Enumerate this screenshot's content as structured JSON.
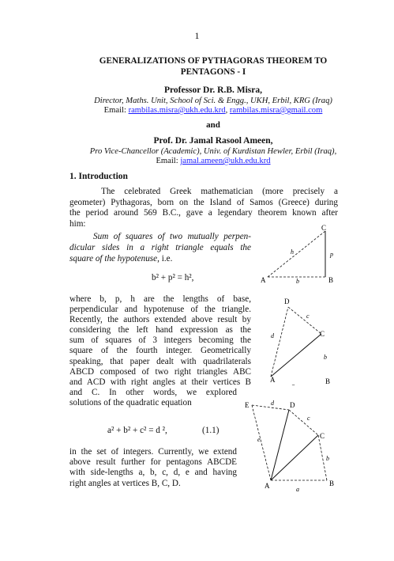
{
  "page_number": "1",
  "title_line1": "GENERALIZATIONS OF PYTHAGORAS THEOREM TO",
  "title_line2": "PENTAGONS - I",
  "author1": {
    "name": "Professor Dr. R.B. Misra,",
    "affiliation": "Director, Maths. Unit, School of Sci. & Engg., UKH, Erbil, KRG (Iraq)",
    "email_label": "Email:",
    "email1": "rambilas.misra@ukh.edu.krd",
    "email_sep": ",",
    "email2": "rambilas.misra@gmail.com"
  },
  "and_word": "and",
  "author2": {
    "name": "Prof. Dr. Jamal Rasool Ameen,",
    "affiliation": "Pro Vice-Chancellor (Academic), Univ. of Kurdistan Hewler, Erbil (Iraq),",
    "email_label": "Email:",
    "email1": "jamal.ameen@ukh.edu.krd"
  },
  "section_heading": "1. Introduction",
  "intro_lines": [
    "The celebrated Greek mathematician (more precisely a",
    "geometer) Pythagoras, born on the Island of Samos (Greece) during",
    "the period around 569 B.C., gave a legendary theorem known after",
    "him:"
  ],
  "theorem_lines": [
    "Sum of squares of two mutually perpen-",
    "dicular sides in a right triangle equals the",
    "square of the hypotenuse,"
  ],
  "theorem_tail": " i.e.",
  "equation1": "b² + p² = h²,",
  "para2_lines": [
    "where b, p, h are the lengths of base,",
    "perpendicular and hypotenuse of the triangle.",
    "Recently, the authors extended above result by",
    "considering the left hand expression as the",
    "sum of squares of 3 integers becoming the",
    "square of the fourth integer. Geometrically",
    "speaking, that paper dealt with quadrilaterals",
    "ABCD composed of two right triangles ABC",
    "and ACD with right angles at their vertices B",
    "and C. In other words, we explored",
    "solutions of the quadratic equation"
  ],
  "equation2": "a² + b² + c² = d ²,",
  "equation2_num": "(1.1)",
  "para3_lines": [
    "in the set of integers. Currently, we extend",
    "above result further for pentagons ABCDE",
    "with side-lengths a, b, c, d, e and having",
    "right angles at vertices B, C, D."
  ],
  "fig1": {
    "labels": {
      "A": "A",
      "B": "B",
      "C": "C",
      "h": "h",
      "p": "p",
      "b": "b"
    }
  },
  "fig2": {
    "labels": {
      "A": "A",
      "B": "B",
      "C": "C",
      "D": "D",
      "a": "a",
      "b": "b",
      "c": "c",
      "d": "d"
    }
  },
  "fig3": {
    "labels": {
      "A": "A",
      "B": "B",
      "C": "C",
      "D": "D",
      "E": "E",
      "a": "a",
      "b": "b",
      "c": "c",
      "d": "d",
      "e": "e"
    }
  }
}
